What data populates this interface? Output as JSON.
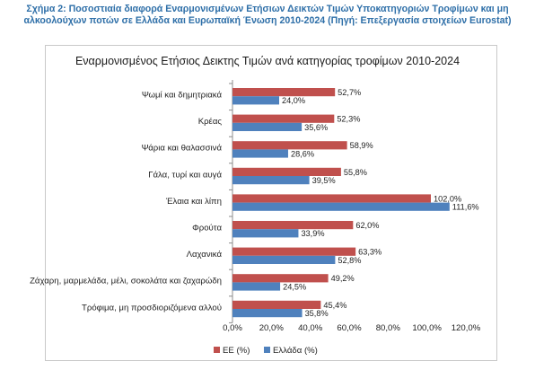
{
  "caption": "Σχήμα 2: Ποσοστιαία διαφορά Εναρμονισμένων Ετήσιων Δεικτών Τιμών Υποκατηγοριών Τροφίμων και μη αλκοολούχων ποτών σε Ελλάδα και Ευρωπαϊκή Ένωση 2010-2024 (Πηγή: Επεξεργασία στοιχείων Eurostat)",
  "chart_data": {
    "type": "bar",
    "orientation": "horizontal",
    "title": "Εναρμονισμένος Ετήσιος Δεικτης Τιμών ανά κατηγορίας τροφίμων 2010-2024",
    "categories": [
      "Ψωμί και δημητριακά",
      "Κρέας",
      "Ψάρια και θαλασσινά",
      "Γάλα, τυρί και αυγά",
      "Έλαια και λίπη",
      "Φρούτα",
      "Λαχανικά",
      "Ζάχαρη, μαρμελάδα, μέλι, σοκολάτα και ζαχαρώδη",
      "Τρόφιμα, μη προσδιοριζόμενα αλλού"
    ],
    "series": [
      {
        "name": "ΕΕ (%)",
        "color": "#c0504d",
        "values": [
          52.7,
          52.3,
          58.9,
          55.8,
          102.0,
          62.0,
          63.3,
          49.2,
          45.4
        ],
        "labels": [
          "52,7%",
          "52,3%",
          "58,9%",
          "55,8%",
          "102,0%",
          "62,0%",
          "63,3%",
          "49,2%",
          "45,4%"
        ]
      },
      {
        "name": "Ελλάδα (%)",
        "color": "#4f81bd",
        "values": [
          24.0,
          35.6,
          28.6,
          39.5,
          111.6,
          33.9,
          52.8,
          24.5,
          35.8
        ],
        "labels": [
          "24,0%",
          "35,6%",
          "28,6%",
          "39,5%",
          "111,6%",
          "33,9%",
          "52,8%",
          "24,5%",
          "35,8%"
        ]
      }
    ],
    "xlim": [
      0,
      120
    ],
    "xticks": [
      0,
      20,
      40,
      60,
      80,
      100,
      120
    ],
    "xtick_labels": [
      "0,0%",
      "20,0%",
      "40,0%",
      "60,0%",
      "80,0%",
      "100,0%",
      "120,0%"
    ],
    "grid": false,
    "legend": "bottom-left"
  }
}
